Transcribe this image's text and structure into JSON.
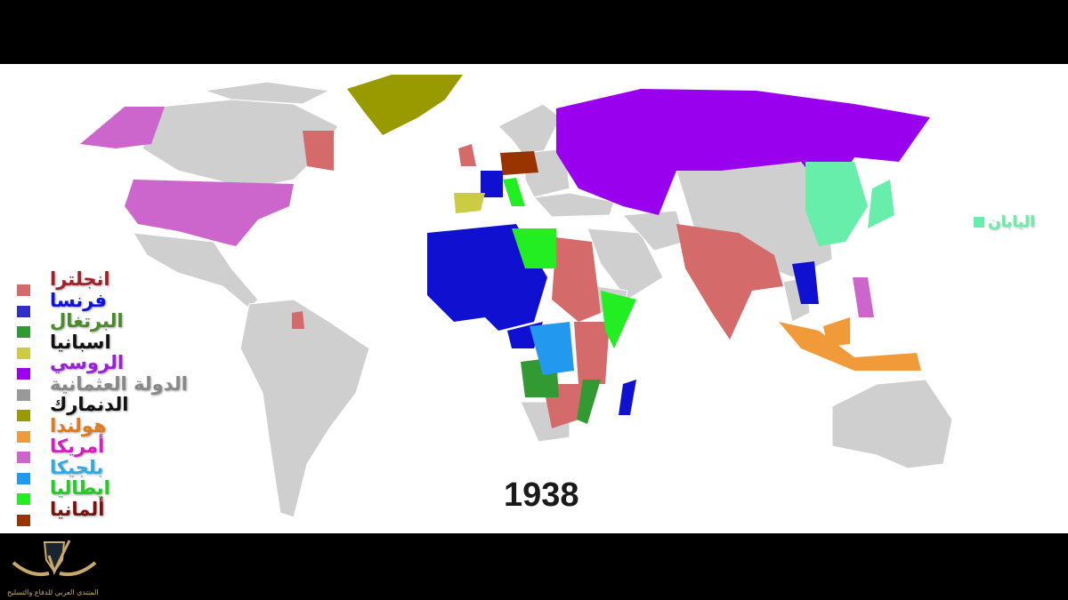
{
  "year": "1938",
  "legend": [
    {
      "label": "انجلترا",
      "color": "#d46a6a",
      "text_color": "#a0202a"
    },
    {
      "label": "فرنسا",
      "color": "#3030c8",
      "text_color": "#1010e0"
    },
    {
      "label": "البرتغال",
      "color": "#339933",
      "text_color": "#4a8a2a"
    },
    {
      "label": "اسبانيا",
      "color": "#cccc44",
      "text_color": "#111111"
    },
    {
      "label": "الروسي",
      "color": "#9900ee",
      "text_color": "#9a20d8"
    },
    {
      "label": "الدولة العثمانية",
      "color": "#999999",
      "text_color": "#888888"
    },
    {
      "label": "الدنمارك",
      "color": "#999900",
      "text_color": "#111111"
    },
    {
      "label": "هولندا",
      "color": "#f09a3a",
      "text_color": "#e07a20"
    },
    {
      "label": "أمريكا",
      "color": "#cc66cc",
      "text_color": "#d020c0"
    },
    {
      "label": "بلجيكا",
      "color": "#2299ee",
      "text_color": "#33aadd"
    },
    {
      "label": "ايطاليا",
      "color": "#22ee22",
      "text_color": "#22cc22"
    },
    {
      "label": "ألمانيا",
      "color": "#993300",
      "text_color": "#7a1010"
    }
  ],
  "japan": {
    "label": "اليابان",
    "color": "#66eeaa"
  },
  "logo": {
    "name": "ARAB DEFENSE FORUM",
    "arabic": "المنتدى العربي للدفاع والتسليح"
  }
}
